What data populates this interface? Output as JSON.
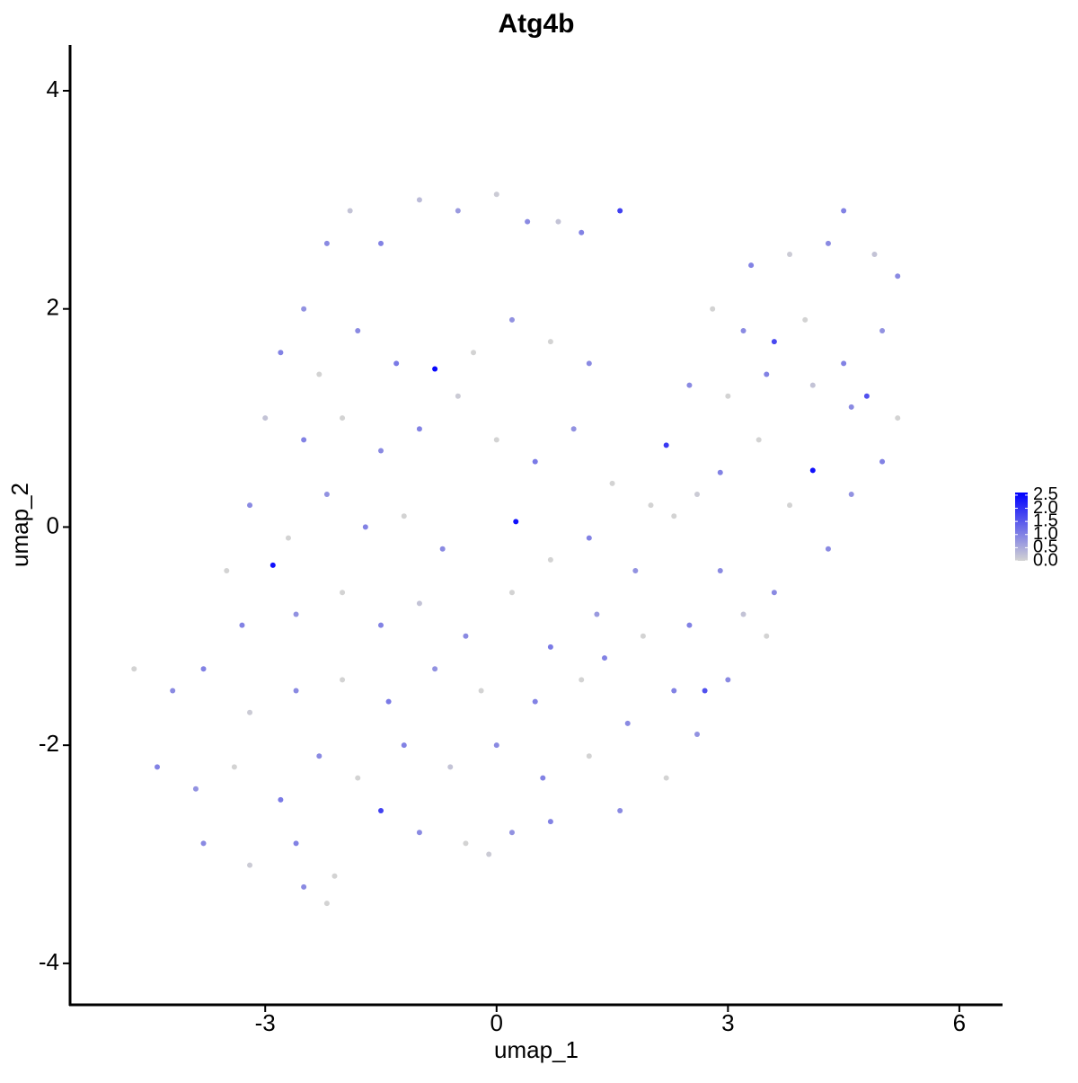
{
  "chart_data": {
    "type": "scatter",
    "title": "Atg4b",
    "x_label": "umap_1",
    "y_label": "umap_2",
    "xlim": [
      -5.53,
      6.56
    ],
    "ylim": [
      -4.38,
      4.42
    ],
    "xticks": [
      -3,
      0,
      3,
      6
    ],
    "yticks": [
      -4,
      -2,
      0,
      2,
      4
    ],
    "color_low": "#d3d3d3",
    "color_high": "#0000ff",
    "clim": [
      0,
      2.6
    ],
    "cticks": [
      {
        "value": 0,
        "label": "0.0"
      },
      {
        "value": 0.5,
        "label": "0.5"
      },
      {
        "value": 1,
        "label": "1.0"
      },
      {
        "value": 1.5,
        "label": "1.5"
      },
      {
        "value": 2,
        "label": "2.0"
      },
      {
        "value": 2.5,
        "label": "2.5"
      }
    ],
    "x": [
      -2.5,
      -2.2,
      -1.9,
      -1.5,
      -1.0,
      -0.5,
      0,
      0.4,
      0.8,
      1.1,
      1.6,
      -2.8,
      -2.3,
      -1.8,
      -1.3,
      -0.8,
      -0.3,
      0.2,
      0.7,
      1.2,
      -3.0,
      -2.5,
      -2.0,
      -1.5,
      -1.0,
      -0.5,
      0.0,
      0.5,
      1.0,
      1.5,
      2.2,
      2.6,
      -3.2,
      -2.7,
      -2.2,
      -1.7,
      -1.2,
      -0.7,
      0.25,
      0.7,
      1.2,
      1.8,
      2.3,
      2.9,
      -2.9,
      -3.5,
      -3.3,
      -2.6,
      -2.0,
      -1.5,
      -1.0,
      -0.4,
      0.2,
      0.7,
      1.3,
      1.9,
      2.5,
      3.2,
      3.6,
      -4.7,
      -4.2,
      -3.8,
      -3.2,
      -2.6,
      -2.0,
      -1.4,
      -0.8,
      -0.2,
      0.5,
      1.1,
      1.7,
      2.3,
      2.7,
      -4.4,
      -3.9,
      -3.4,
      -2.8,
      -2.3,
      -1.8,
      -1.2,
      -0.6,
      0.0,
      0.6,
      1.2,
      -3.8,
      -3.2,
      -2.6,
      -2.1,
      -1.5,
      -1.0,
      -0.4,
      0.2,
      0.7,
      -2.2,
      -2.5,
      -0.1,
      3.3,
      3.8,
      4.3,
      4.5,
      4.9,
      5.2,
      2.8,
      3.2,
      3.6,
      4.0,
      4.5,
      5.0,
      2.5,
      3.0,
      3.5,
      4.1,
      4.6,
      5.2,
      4.8,
      2.9,
      3.4,
      4.1,
      4.6,
      5.0,
      3.8,
      4.3,
      3.5,
      3.0,
      2.6,
      2.2,
      1.6,
      1.4,
      2.0
    ],
    "y": [
      2.0,
      2.6,
      2.9,
      2.6,
      3.0,
      2.9,
      3.05,
      2.8,
      2.8,
      2.7,
      2.9,
      1.6,
      1.4,
      1.8,
      1.5,
      1.45,
      1.6,
      1.9,
      1.7,
      1.5,
      1.0,
      0.8,
      1.0,
      0.7,
      0.9,
      1.2,
      0.8,
      0.6,
      0.9,
      0.4,
      0.75,
      0.3,
      0.2,
      -0.1,
      0.3,
      0.0,
      0.1,
      -0.2,
      0.05,
      -0.3,
      -0.1,
      -0.4,
      0.1,
      -0.4,
      -0.35,
      -0.4,
      -0.9,
      -0.8,
      -0.6,
      -0.9,
      -0.7,
      -1.0,
      -0.6,
      -1.1,
      -0.8,
      -1.0,
      -0.9,
      -0.8,
      -0.6,
      -1.3,
      -1.5,
      -1.3,
      -1.7,
      -1.5,
      -1.4,
      -1.6,
      -1.3,
      -1.5,
      -1.6,
      -1.4,
      -1.8,
      -1.5,
      -1.5,
      -2.2,
      -2.4,
      -2.2,
      -2.5,
      -2.1,
      -2.3,
      -2.0,
      -2.2,
      -2.0,
      -2.3,
      -2.1,
      -2.9,
      -3.1,
      -2.9,
      -3.2,
      -2.6,
      -2.8,
      -2.9,
      -2.8,
      -2.7,
      -3.45,
      -3.3,
      -3.0,
      2.4,
      2.5,
      2.6,
      2.9,
      2.5,
      2.3,
      2.0,
      1.8,
      1.7,
      1.9,
      1.5,
      1.8,
      1.3,
      1.2,
      1.4,
      1.3,
      1.1,
      1.0,
      1.2,
      0.5,
      0.8,
      0.52,
      0.3,
      0.6,
      0.2,
      -0.2,
      -1.0,
      -1.4,
      -1.9,
      -2.3,
      -2.6,
      -1.2,
      0.2
    ],
    "values": [
      0.8,
      0.9,
      0.2,
      1.0,
      0.3,
      0.7,
      0.1,
      0.9,
      0.2,
      1.0,
      1.8,
      1.0,
      0,
      0.9,
      1.1,
      2.5,
      0,
      0.8,
      0,
      0.9,
      0.2,
      1.0,
      0,
      0.9,
      1.0,
      0.1,
      0,
      1.1,
      0.8,
      0,
      1.9,
      0.1,
      0.9,
      0,
      0.8,
      1.0,
      0,
      0.9,
      2.4,
      0,
      1.0,
      0.8,
      0,
      0.9,
      2.4,
      0,
      1.0,
      0.8,
      0,
      1.0,
      0.2,
      0.9,
      0,
      1.1,
      0.7,
      0,
      1.0,
      0.2,
      0.9,
      0,
      0.9,
      1.0,
      0.1,
      0.9,
      0,
      1.1,
      0.8,
      0,
      1.0,
      0,
      0.9,
      1.0,
      1.6,
      1.0,
      0.8,
      0,
      1.1,
      0.9,
      0,
      1.0,
      0.2,
      0.9,
      1.0,
      0,
      0.9,
      0.1,
      1.0,
      0,
      1.8,
      0.9,
      0,
      0.8,
      1.0,
      0,
      0.9,
      0.1,
      1.0,
      0.1,
      0.9,
      1.0,
      0.2,
      0.9,
      0,
      0.9,
      1.7,
      0,
      1.0,
      0.8,
      0.9,
      0,
      1.0,
      0.2,
      0.9,
      0,
      1.6,
      1.0,
      0,
      2.4,
      0.8,
      1.0,
      0,
      0.9,
      0,
      0.9,
      0.8,
      0,
      0.9,
      1.0,
      0
    ]
  }
}
